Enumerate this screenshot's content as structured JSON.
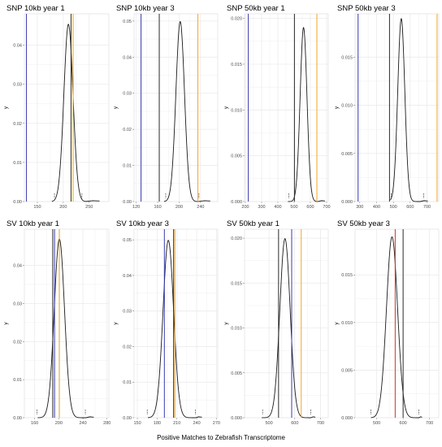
{
  "figure": {
    "xlabel": "Positive Matches to Zebrafish Transcriptome"
  },
  "colors": {
    "density": "#1a1a1a",
    "black_line": "#2b2b2b",
    "blue_line": "#3a3ab0",
    "orange_line": "#f5a623",
    "red_line": "#c0392b",
    "grid": "#ebebeb",
    "panel_border": "#d9d9d9"
  },
  "chart_data": [
    {
      "type": "line",
      "title": "SNP 10kb year 1",
      "ylabel": "y",
      "xlim": [
        125,
        288
      ],
      "ylim": [
        0,
        0.048
      ],
      "xticks": [
        150,
        200,
        250
      ],
      "yticks": [
        0.0,
        0.01,
        0.02,
        0.03,
        0.04
      ],
      "ytick_labels": [
        "0.00",
        "0.01",
        "0.02",
        "0.03",
        "0.04"
      ],
      "density": {
        "mean": 210,
        "sd": 8.8,
        "lo": 178,
        "hi": 244,
        "tail_end": 270
      },
      "quantiles": [
        183,
        236
      ],
      "vlines": [
        {
          "x": 129,
          "color": "blue"
        },
        {
          "x": 215,
          "color": "black"
        },
        {
          "x": 219,
          "color": "orange"
        }
      ]
    },
    {
      "type": "line",
      "title": "SNP 10kb year 3",
      "ylabel": "y",
      "xlim": [
        116,
        272
      ],
      "ylim": [
        0,
        0.052
      ],
      "xticks": [
        120,
        160,
        200,
        240
      ],
      "yticks": [
        0.0,
        0.01,
        0.02,
        0.03,
        0.04,
        0.05
      ],
      "ytick_labels": [
        "0.00",
        "0.01",
        "0.02",
        "0.03",
        "0.04",
        "0.05"
      ],
      "density": {
        "mean": 202,
        "sd": 8.0,
        "lo": 172,
        "hi": 236,
        "tail_end": 258
      },
      "quantiles": [
        175,
        237
      ],
      "vlines": [
        {
          "x": 129,
          "color": "blue"
        },
        {
          "x": 163,
          "color": "black"
        },
        {
          "x": 235,
          "color": "orange"
        }
      ]
    },
    {
      "type": "line",
      "title": "SNP 50kb year 1",
      "ylabel": "y",
      "xlim": [
        195,
        710
      ],
      "ylim": [
        0,
        0.0205
      ],
      "xticks": [
        200,
        300,
        400,
        500,
        600,
        700
      ],
      "yticks": [
        0.0,
        0.005,
        0.01,
        0.015,
        0.02
      ],
      "ytick_labels": [
        "0.000",
        "0.005",
        "0.010",
        "0.015",
        "0.020"
      ],
      "density": {
        "mean": 558,
        "sd": 21,
        "lo": 462,
        "hi": 648,
        "tail_end": 690
      },
      "quantiles": [
        468,
        640
      ],
      "vlines": [
        {
          "x": 218,
          "color": "blue"
        },
        {
          "x": 502,
          "color": "black"
        },
        {
          "x": 640,
          "color": "orange"
        }
      ]
    },
    {
      "type": "line",
      "title": "SNP 50kb year 3",
      "ylabel": "y",
      "xlim": [
        272,
        770
      ],
      "ylim": [
        0,
        0.0195
      ],
      "xticks": [
        300,
        400,
        500,
        600,
        700
      ],
      "yticks": [
        0.0,
        0.005,
        0.01,
        0.015
      ],
      "ytick_labels": [
        "0.000",
        "0.005",
        "0.010",
        "0.015"
      ],
      "density": {
        "mean": 547,
        "sd": 21,
        "lo": 482,
        "hi": 660,
        "tail_end": 705
      },
      "quantiles": [
        487,
        680
      ],
      "vlines": [
        {
          "x": 290,
          "color": "blue"
        },
        {
          "x": 477,
          "color": "black"
        },
        {
          "x": 760,
          "color": "orange"
        }
      ]
    },
    {
      "type": "line",
      "title": "SV 10kb year 1",
      "ylabel": "y",
      "xlim": [
        143,
        283
      ],
      "ylim": [
        0,
        0.0495
      ],
      "xticks": [
        160,
        200,
        240,
        280
      ],
      "yticks": [
        0.0,
        0.01,
        0.02,
        0.03,
        0.04
      ],
      "ytick_labels": [
        "0.00",
        "0.01",
        "0.02",
        "0.03",
        "0.04"
      ],
      "density": {
        "mean": 201,
        "sd": 8.5,
        "lo": 165,
        "hi": 245,
        "tail_end": 258
      },
      "quantiles": [
        164,
        244
      ],
      "vlines": [
        {
          "x": 190,
          "color": "black"
        },
        {
          "x": 193,
          "color": "blue"
        },
        {
          "x": 201,
          "color": "orange"
        }
      ]
    },
    {
      "type": "line",
      "title": "SV 10kb year 3",
      "ylabel": "y",
      "xlim": [
        145,
        272
      ],
      "ylim": [
        0,
        0.053
      ],
      "xticks": [
        150,
        180,
        210,
        240,
        270
      ],
      "yticks": [
        0.0,
        0.01,
        0.02,
        0.03,
        0.04,
        0.05
      ],
      "ytick_labels": [
        "0.00",
        "0.01",
        "0.02",
        "0.03",
        "0.04",
        "0.05"
      ],
      "density": {
        "mean": 197,
        "sd": 8.0,
        "lo": 166,
        "hi": 238,
        "tail_end": 248
      },
      "quantiles": [
        165,
        238
      ],
      "vlines": [
        {
          "x": 191,
          "color": "blue"
        },
        {
          "x": 205,
          "color": "black"
        },
        {
          "x": 207,
          "color": "orange"
        }
      ]
    },
    {
      "type": "line",
      "title": "SV 50kb year 1",
      "ylabel": "y",
      "xlim": [
        405,
        730
      ],
      "ylim": [
        0,
        0.021
      ],
      "xticks": [
        500,
        600,
        700
      ],
      "yticks": [
        0.0,
        0.005,
        0.01,
        0.015,
        0.02
      ],
      "ytick_labels": [
        "0.000",
        "0.005",
        "0.010",
        "0.015",
        "0.020"
      ],
      "density": {
        "mean": 562,
        "sd": 20,
        "lo": 472,
        "hi": 662,
        "tail_end": 680
      },
      "quantiles": [
        475,
        662
      ],
      "vlines": [
        {
          "x": 537,
          "color": "black"
        },
        {
          "x": 588,
          "color": "blue"
        },
        {
          "x": 625,
          "color": "orange"
        }
      ]
    },
    {
      "type": "line",
      "title": "SV 50kb year 3",
      "ylabel": "y",
      "xlim": [
        418,
        735
      ],
      "ylim": [
        0,
        0.0198
      ],
      "xticks": [
        500,
        600,
        700
      ],
      "yticks": [
        0.0,
        0.005,
        0.01,
        0.015
      ],
      "ytick_labels": [
        "0.000",
        "0.005",
        "0.010",
        "0.015"
      ],
      "density": {
        "mean": 558,
        "sd": 21,
        "lo": 478,
        "hi": 660,
        "tail_end": 672
      },
      "quantiles": [
        478,
        660
      ],
      "vlines": [
        {
          "x": 570,
          "color": "red"
        },
        {
          "x": 600,
          "color": "black"
        }
      ]
    }
  ]
}
